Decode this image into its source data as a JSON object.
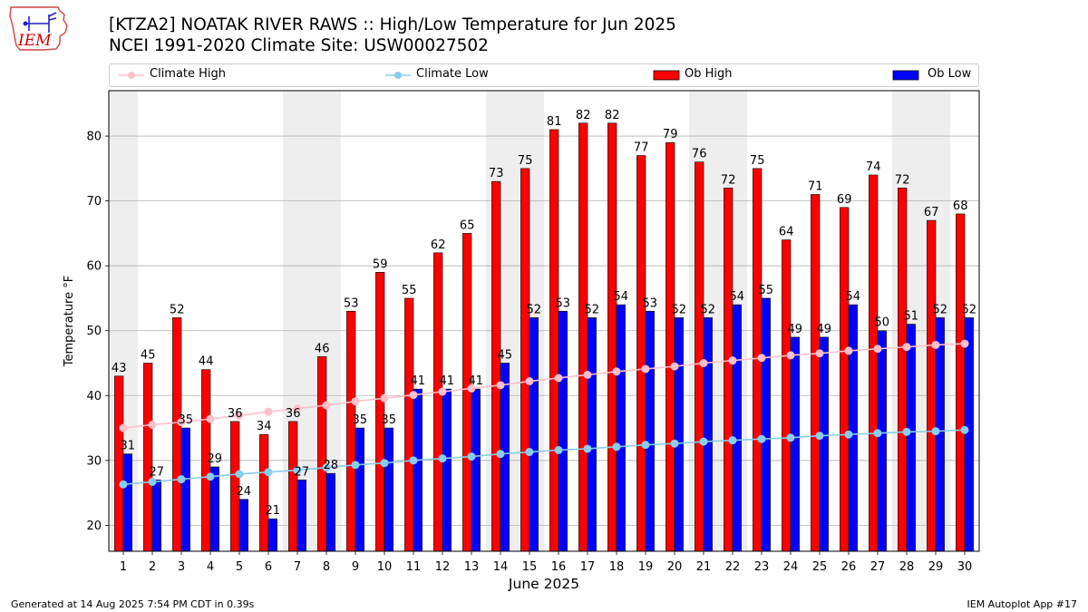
{
  "title_line1": "[KTZA2] NOATAK RIVER RAWS :: High/Low Temperature for Jun 2025",
  "title_line2": "NCEI 1991-2020 Climate Site: USW00027502",
  "logo_text": "IEM",
  "footer_left": "Generated at 14 Aug 2025 7:54 PM CDT in 0.39s",
  "footer_right": "IEM Autoplot App #17",
  "legend": {
    "climate_high": "Climate High",
    "climate_low": "Climate Low",
    "ob_high": "Ob High",
    "ob_low": "Ob Low"
  },
  "colors": {
    "ob_high": "#ff0000",
    "ob_low": "#0000ff",
    "climate_high": "#ffc0cb",
    "climate_low": "#87ceeb",
    "weekend_shade": "#eeeeee"
  },
  "chart_data": {
    "type": "bar",
    "xlabel": "June 2025",
    "ylabel": "Temperature °F",
    "ylim": [
      16,
      87
    ],
    "yticks": [
      20,
      30,
      40,
      50,
      60,
      70,
      80
    ],
    "grid": "horizontal",
    "legend_position": "top",
    "categories": [
      "1",
      "2",
      "3",
      "4",
      "5",
      "6",
      "7",
      "8",
      "9",
      "10",
      "11",
      "12",
      "13",
      "14",
      "15",
      "16",
      "17",
      "18",
      "19",
      "20",
      "21",
      "22",
      "23",
      "24",
      "25",
      "26",
      "27",
      "28",
      "29",
      "30"
    ],
    "shaded_days": [
      "1",
      "7",
      "8",
      "14",
      "15",
      "21",
      "22",
      "28",
      "29"
    ],
    "series": [
      {
        "name": "Ob High",
        "kind": "bar",
        "values": [
          43,
          45,
          52,
          44,
          36,
          34,
          36,
          46,
          53,
          59,
          55,
          62,
          65,
          73,
          75,
          81,
          82,
          82,
          77,
          79,
          76,
          72,
          75,
          64,
          71,
          69,
          74,
          72,
          67,
          68
        ]
      },
      {
        "name": "Ob Low",
        "kind": "bar",
        "values": [
          31,
          27,
          35,
          29,
          24,
          21,
          27,
          28,
          35,
          35,
          41,
          41,
          41,
          45,
          52,
          53,
          52,
          54,
          53,
          52,
          52,
          54,
          55,
          49,
          49,
          54,
          50,
          51,
          52,
          52
        ]
      },
      {
        "name": "Climate High",
        "kind": "line",
        "values": [
          35.0,
          35.5,
          35.9,
          36.4,
          36.9,
          37.5,
          38.0,
          38.5,
          39.1,
          39.6,
          40.1,
          40.6,
          41.1,
          41.6,
          42.2,
          42.7,
          43.2,
          43.7,
          44.1,
          44.5,
          45.0,
          45.4,
          45.8,
          46.2,
          46.5,
          46.9,
          47.2,
          47.5,
          47.8,
          48.0
        ]
      },
      {
        "name": "Climate Low",
        "kind": "line",
        "values": [
          26.3,
          26.7,
          27.1,
          27.5,
          27.9,
          28.2,
          28.5,
          28.9,
          29.3,
          29.6,
          30.0,
          30.3,
          30.6,
          31.0,
          31.3,
          31.6,
          31.8,
          32.1,
          32.4,
          32.6,
          32.9,
          33.1,
          33.3,
          33.5,
          33.8,
          34.0,
          34.2,
          34.4,
          34.5,
          34.7
        ]
      }
    ]
  }
}
